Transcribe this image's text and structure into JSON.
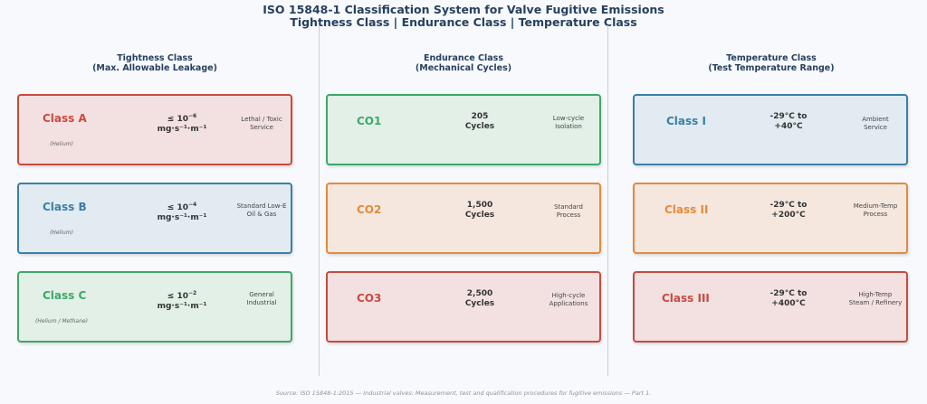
{
  "title": {
    "line1": "ISO 15848-1 Classification System for Valve Fugitive Emissions",
    "line2": "Tightness Class | Endurance Class | Temperature Class"
  },
  "columns": [
    {
      "header_line1": "Tightness Class",
      "header_line2": "(Max. Allowable Leakage)",
      "cards": [
        {
          "name": "Class A",
          "sub": "(Helium)",
          "value_base": "≤ 10",
          "value_exp": "−6",
          "value_unit": "mg·s⁻¹·m⁻¹",
          "desc_line1": "Lethal / Toxic",
          "desc_line2": "Service",
          "color": "#c94a3f",
          "fill": "#f3e1e1"
        },
        {
          "name": "Class B",
          "sub": "(Helium)",
          "value_base": "≤ 10",
          "value_exp": "−4",
          "value_unit": "mg·s⁻¹·m⁻¹",
          "desc_line1": "Standard Low-E",
          "desc_line2": "Oil & Gas",
          "color": "#3a7fa6",
          "fill": "#e1ebf1"
        },
        {
          "name": "Class C",
          "sub": "(Helium / Methane)",
          "value_base": "≤ 10",
          "value_exp": "−2",
          "value_unit": "mg·s⁻¹·m⁻¹",
          "desc_line1": "General",
          "desc_line2": "Industrial",
          "color": "#3da867",
          "fill": "#e2f0e7"
        }
      ]
    },
    {
      "header_line1": "Endurance Class",
      "header_line2": "(Mechanical Cycles)",
      "cards": [
        {
          "name": "CO1",
          "value_line1": "205",
          "value_line2": "Cycles",
          "desc_line1": "Low-cycle",
          "desc_line2": "Isolation",
          "color": "#3da867",
          "fill": "#e2f0e7"
        },
        {
          "name": "CO2",
          "value_line1": "1,500",
          "value_line2": "Cycles",
          "desc_line1": "Standard",
          "desc_line2": "Process",
          "color": "#e38a3c",
          "fill": "#f5e7de"
        },
        {
          "name": "CO3",
          "value_line1": "2,500",
          "value_line2": "Cycles",
          "desc_line1": "High-cycle",
          "desc_line2": "Applications",
          "color": "#c94a3f",
          "fill": "#f3e1e1"
        }
      ]
    },
    {
      "header_line1": "Temperature Class",
      "header_line2": "(Test Temperature Range)",
      "cards": [
        {
          "name": "Class I",
          "value_line1": "-29°C to",
          "value_line2": "+40°C",
          "desc_line1": "Ambient",
          "desc_line2": "Service",
          "color": "#3a7fa6",
          "fill": "#e1ebf1"
        },
        {
          "name": "Class II",
          "value_line1": "-29°C to",
          "value_line2": "+200°C",
          "desc_line1": "Medium-Temp",
          "desc_line2": "Process",
          "color": "#e38a3c",
          "fill": "#f5e7de"
        },
        {
          "name": "Class III",
          "value_line1": "-29°C to",
          "value_line2": "+400°C",
          "desc_line1": "High-Temp",
          "desc_line2": "Steam / Refinery",
          "color": "#c94a3f",
          "fill": "#f3e1e1"
        }
      ]
    }
  ],
  "source": "Source: ISO 15848-1:2015 — Industrial valves: Measurement, test and qualification procedures for fugitive emissions — Part 1."
}
